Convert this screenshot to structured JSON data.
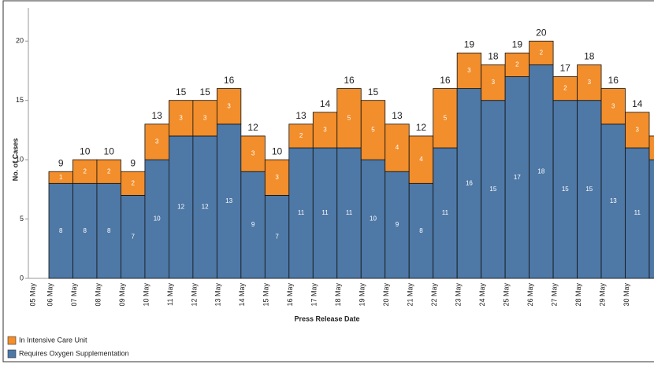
{
  "chart_data": {
    "type": "stacked_bar",
    "xlabel": "Press Release Date",
    "ylabel": "No. of Cases",
    "categories": [
      "05 May",
      "06 May",
      "07 May",
      "08 May",
      "09 May",
      "10 May",
      "11 May",
      "12 May",
      "13 May",
      "14 May",
      "15 May",
      "16 May",
      "17 May",
      "18 May",
      "19 May",
      "20 May",
      "21 May",
      "22 May",
      "23 May",
      "24 May",
      "25 May",
      "26 May",
      "27 May",
      "28 May",
      "29 May",
      "30 May",
      null
    ],
    "series": [
      {
        "name": "Requires Oxygen Supplementation",
        "color": "#4e78a6",
        "values": [
          null,
          8,
          8,
          8,
          7,
          10,
          12,
          12,
          13,
          9,
          7,
          11,
          11,
          11,
          10,
          9,
          8,
          11,
          16,
          15,
          17,
          18,
          15,
          15,
          13,
          11,
          10
        ]
      },
      {
        "name": "In Intensive Care Unit",
        "color": "#f28e2b",
        "values": [
          null,
          1,
          2,
          2,
          2,
          3,
          3,
          3,
          3,
          3,
          3,
          2,
          3,
          5,
          5,
          4,
          4,
          5,
          3,
          3,
          2,
          2,
          2,
          3,
          3,
          3,
          2
        ]
      }
    ],
    "totals": [
      null,
      9,
      10,
      10,
      9,
      13,
      15,
      15,
      16,
      12,
      10,
      13,
      14,
      16,
      15,
      13,
      12,
      16,
      19,
      18,
      19,
      20,
      17,
      18,
      16,
      14,
      null
    ],
    "ylim": [
      0,
      22.8
    ],
    "yticks": [
      0,
      5,
      10,
      15,
      20
    ]
  }
}
